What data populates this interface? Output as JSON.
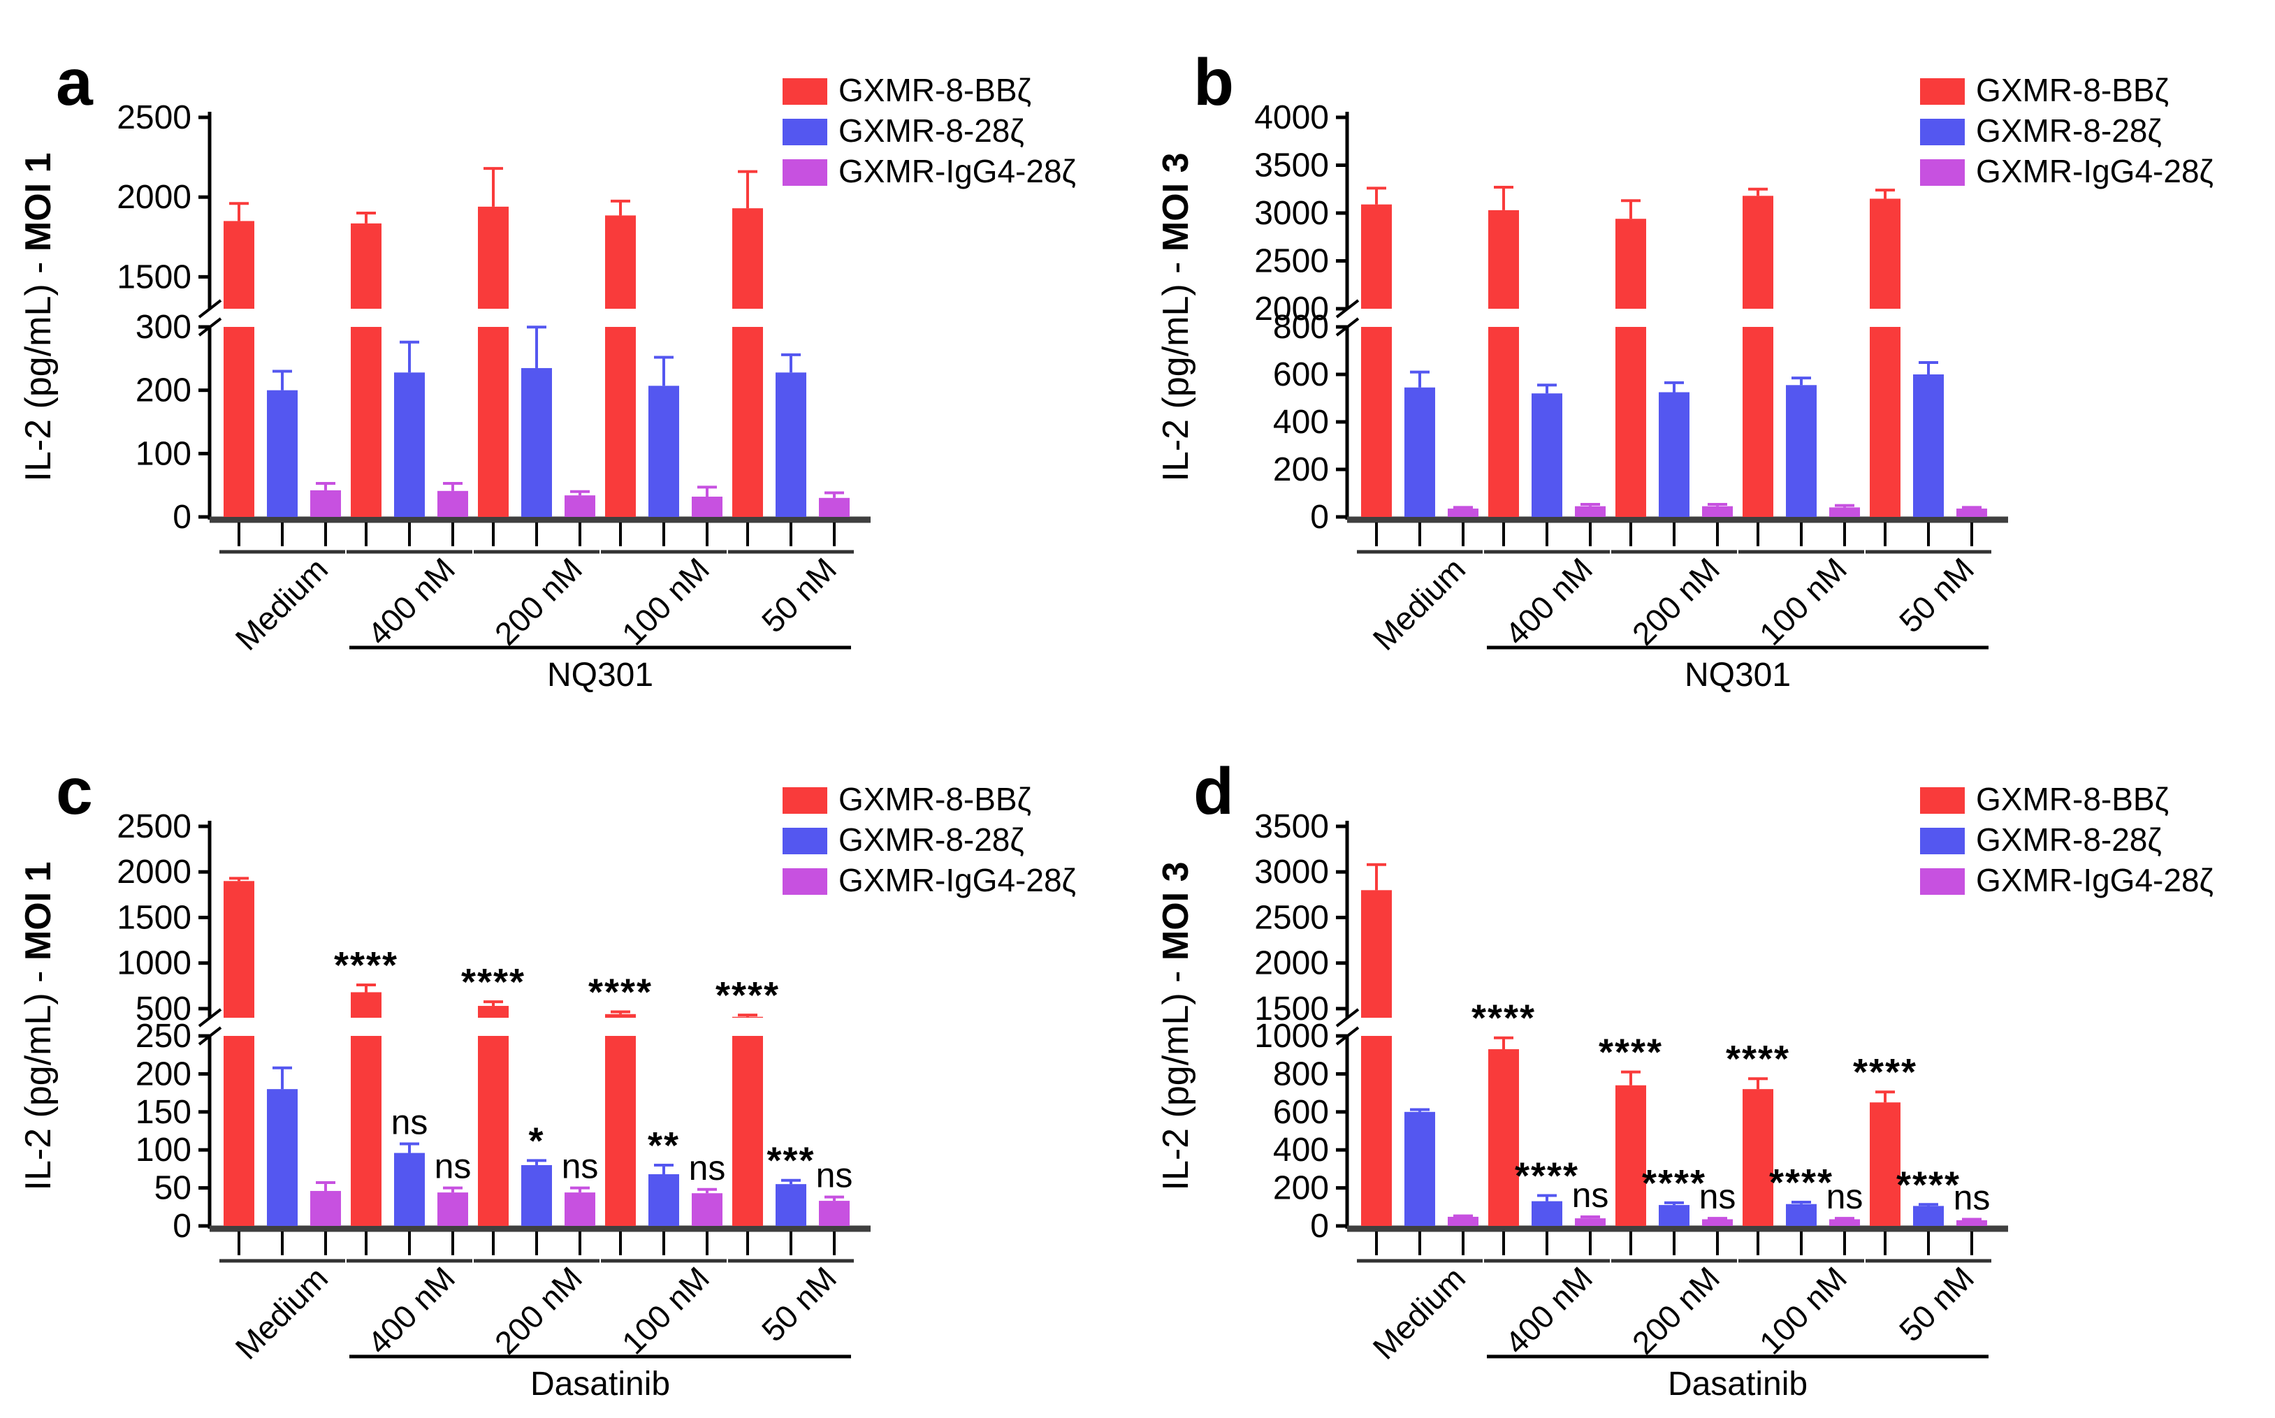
{
  "figure": {
    "background": "#FFFFFF",
    "colors": {
      "red": "#F93B3B",
      "blue": "#5457F0",
      "magenta": "#C751E0",
      "axis": "#000000",
      "baseline": "#3F3F3F"
    },
    "legend": [
      {
        "label": "GXMR-8-BBζ",
        "series": "red"
      },
      {
        "label": "GXMR-8-28ζ",
        "series": "blue"
      },
      {
        "label": "GXMR-IgG4-28ζ",
        "series": "magenta"
      }
    ],
    "chart_data": [
      {
        "type": "bar",
        "panel_label": "a",
        "ylabel": "IL-2 (pg/mL) - ",
        "ylabel_bold": "MOI 1",
        "categories": [
          "Medium",
          "400 nM",
          "200 nM",
          "100 nM",
          "50 nM"
        ],
        "treatment_label": "NQ301",
        "axis": {
          "bottom_ticks": [
            0,
            100,
            200,
            300
          ],
          "top_ticks": [
            1500,
            2000,
            2500
          ],
          "bottom_max": 300,
          "top_start": 1300,
          "top_max": 2500
        },
        "series": [
          {
            "name": "GXMR-8-BBζ",
            "color_key": "red",
            "values": [
              1850,
              1835,
              1940,
              1885,
              1930
            ],
            "errors": [
              110,
              65,
              240,
              90,
              230
            ],
            "sig": [
              "",
              "",
              "",
              "",
              ""
            ]
          },
          {
            "name": "GXMR-8-28ζ",
            "color_key": "blue",
            "values": [
              200,
              228,
              235,
              207,
              228
            ],
            "errors": [
              30,
              48,
              68,
              45,
              28
            ],
            "sig": [
              "",
              "",
              "",
              "",
              ""
            ]
          },
          {
            "name": "GXMR-IgG4-28ζ",
            "color_key": "magenta",
            "values": [
              42,
              41,
              34,
              32,
              30
            ],
            "errors": [
              11,
              12,
              6,
              15,
              8
            ],
            "sig": [
              "",
              "",
              "",
              "",
              ""
            ]
          }
        ]
      },
      {
        "type": "bar",
        "panel_label": "b",
        "ylabel": "IL-2 (pg/mL) - ",
        "ylabel_bold": "MOI 3",
        "categories": [
          "Medium",
          "400 nM",
          "200 nM",
          "100 nM",
          "50 nM"
        ],
        "treatment_label": "NQ301",
        "axis": {
          "bottom_ticks": [
            0,
            200,
            400,
            600,
            800
          ],
          "top_ticks": [
            2000,
            2500,
            3000,
            3500,
            4000
          ],
          "bottom_max": 800,
          "top_start": 2000,
          "top_max": 4000
        },
        "series": [
          {
            "name": "GXMR-8-BBζ",
            "color_key": "red",
            "values": [
              3090,
              3030,
              2940,
              3180,
              3150
            ],
            "errors": [
              170,
              240,
              190,
              70,
              90
            ],
            "sig": [
              "",
              "",
              "",
              "",
              ""
            ]
          },
          {
            "name": "GXMR-8-28ζ",
            "color_key": "blue",
            "values": [
              545,
              520,
              525,
              555,
              600
            ],
            "errors": [
              65,
              35,
              40,
              30,
              50
            ],
            "sig": [
              "",
              "",
              "",
              "",
              ""
            ]
          },
          {
            "name": "GXMR-IgG4-28ζ",
            "color_key": "magenta",
            "values": [
              35,
              45,
              45,
              40,
              35
            ],
            "errors": [
              5,
              8,
              8,
              8,
              5
            ],
            "sig": [
              "",
              "",
              "",
              "",
              ""
            ]
          }
        ]
      },
      {
        "type": "bar",
        "panel_label": "c",
        "ylabel": "IL-2 (pg/mL) - ",
        "ylabel_bold": "MOI 1",
        "categories": [
          "Medium",
          "400 nM",
          "200 nM",
          "100 nM",
          "50 nM"
        ],
        "treatment_label": "Dasatinib",
        "axis": {
          "bottom_ticks": [
            0,
            50,
            100,
            150,
            200,
            250
          ],
          "top_ticks": [
            500,
            1000,
            1500,
            2000,
            2500
          ],
          "bottom_max": 250,
          "top_start": 400,
          "top_max": 2500
        },
        "series": [
          {
            "name": "GXMR-8-BBζ",
            "color_key": "red",
            "values": [
              1900,
              680,
              530,
              440,
              410
            ],
            "errors": [
              30,
              80,
              45,
              25,
              20
            ],
            "sig": [
              "",
              "****",
              "****",
              "****",
              "****"
            ]
          },
          {
            "name": "GXMR-8-28ζ",
            "color_key": "blue",
            "values": [
              180,
              96,
              80,
              68,
              55
            ],
            "errors": [
              28,
              12,
              6,
              12,
              5
            ],
            "sig": [
              "",
              "ns",
              "*",
              "**",
              "***"
            ]
          },
          {
            "name": "GXMR-IgG4-28ζ",
            "color_key": "magenta",
            "values": [
              46,
              44,
              44,
              43,
              33
            ],
            "errors": [
              11,
              6,
              6,
              5,
              5
            ],
            "sig": [
              "",
              "ns",
              "ns",
              "ns",
              "ns"
            ]
          }
        ]
      },
      {
        "type": "bar",
        "panel_label": "d",
        "ylabel": "IL-2 (pg/mL) - ",
        "ylabel_bold": "MOI 3",
        "categories": [
          "Medium",
          "400 nM",
          "200 nM",
          "100 nM",
          "50 nM"
        ],
        "treatment_label": "Dasatinib",
        "axis": {
          "bottom_ticks": [
            0,
            200,
            400,
            600,
            800,
            1000
          ],
          "top_ticks": [
            1500,
            2000,
            2500,
            3000,
            3500
          ],
          "bottom_max": 1000,
          "top_start": 1400,
          "top_max": 3500
        },
        "series": [
          {
            "name": "GXMR-8-BBζ",
            "color_key": "red",
            "values": [
              2800,
              930,
              740,
              720,
              650
            ],
            "errors": [
              280,
              60,
              70,
              55,
              55
            ],
            "sig": [
              "",
              "****",
              "****",
              "****",
              "****"
            ]
          },
          {
            "name": "GXMR-8-28ζ",
            "color_key": "blue",
            "values": [
              600,
              130,
              110,
              115,
              105
            ],
            "errors": [
              12,
              30,
              12,
              10,
              8
            ],
            "sig": [
              "",
              "****",
              "****",
              "****",
              "****"
            ]
          },
          {
            "name": "GXMR-IgG4-28ζ",
            "color_key": "magenta",
            "values": [
              48,
              40,
              35,
              35,
              30
            ],
            "errors": [
              5,
              8,
              5,
              5,
              5
            ],
            "sig": [
              "",
              "ns",
              "ns",
              "ns",
              "ns"
            ]
          }
        ]
      }
    ]
  }
}
